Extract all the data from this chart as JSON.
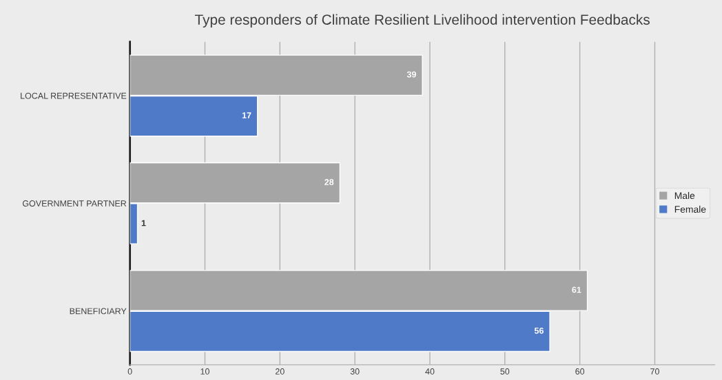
{
  "chart_data": {
    "type": "bar",
    "orientation": "horizontal",
    "title": "Type responders of Climate Resilient Livelihood intervention Feedbacks",
    "categories": [
      "LOCAL REPRESENTATIVE",
      "GOVERNMENT PARTNER",
      "BENEFICIARY"
    ],
    "series": [
      {
        "name": "Male",
        "color": "#a5a5a5",
        "values": [
          39,
          28,
          61
        ]
      },
      {
        "name": "Female",
        "color": "#4f7ac7",
        "values": [
          17,
          1,
          56
        ]
      }
    ],
    "xlim": [
      0,
      78
    ],
    "xticks": [
      0,
      10,
      20,
      30,
      40,
      50,
      60,
      70
    ],
    "grid": "x",
    "legend": "right",
    "data_labels": true
  }
}
